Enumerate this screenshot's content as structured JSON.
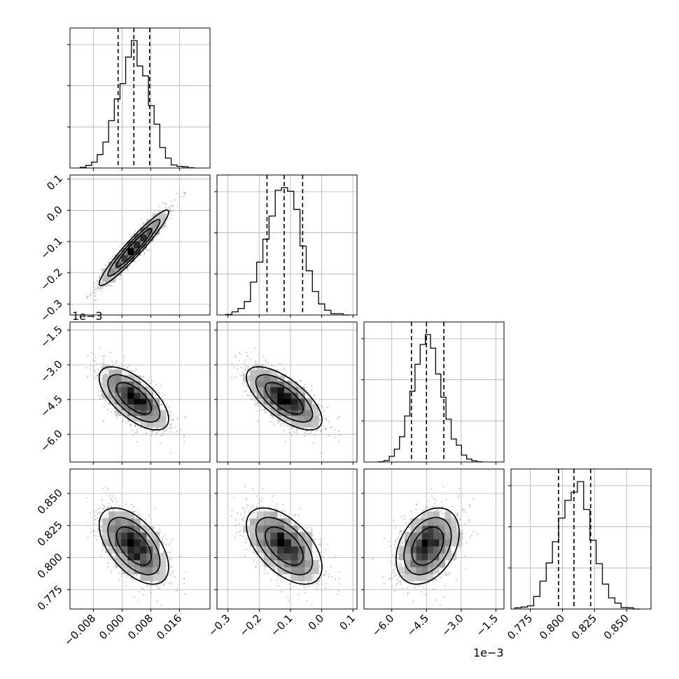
{
  "chart_data": {
    "type": "corner",
    "title": "",
    "parameters": [
      {
        "index": 0,
        "range": [
          -0.0145,
          0.0245
        ],
        "ticks": [
          -0.008,
          0.0,
          0.008,
          0.016
        ],
        "tick_labels": [
          "−0.008",
          "0.000",
          "0.008",
          "0.016"
        ],
        "offset_label": "",
        "mean": 0.0033,
        "sd": 0.0044,
        "quantiles": [
          -0.0011,
          0.0033,
          0.0077
        ]
      },
      {
        "index": 1,
        "range": [
          -0.335,
          0.113
        ],
        "ticks": [
          -0.3,
          -0.2,
          -0.1,
          0.0,
          0.1
        ],
        "tick_labels": [
          "−0.3",
          "−0.2",
          "−0.1",
          "0.0",
          "0.1"
        ],
        "offset_label": "",
        "mean": -0.12,
        "sd": 0.055,
        "quantiles": [
          -0.175,
          -0.12,
          -0.061
        ]
      },
      {
        "index": 2,
        "range": [
          -7.2,
          -1.15
        ],
        "ticks": [
          -6.0,
          -4.5,
          -3.0,
          -1.5
        ],
        "tick_labels": [
          "−6.0",
          "−4.5",
          "−3.0",
          "−1.5"
        ],
        "offset_label": "1e−3",
        "mean": -4.45,
        "sd": 0.62,
        "quantiles": [
          -5.15,
          -4.5,
          -3.75
        ]
      },
      {
        "index": 3,
        "range": [
          0.76,
          0.869
        ],
        "ticks": [
          0.775,
          0.8,
          0.825,
          0.85
        ],
        "tick_labels": [
          "0.775",
          "0.800",
          "0.825",
          "0.850"
        ],
        "offset_label": "",
        "mean": 0.809,
        "sd": 0.0135,
        "quantiles": [
          0.797,
          0.809,
          0.822
        ]
      }
    ],
    "correlations": {
      "0-1": 0.95,
      "0-2": -0.65,
      "1-2": -0.68,
      "0-3": -0.55,
      "1-3": -0.55,
      "2-3": 0.35
    },
    "histogram_bins": 20,
    "contour_levels_sigma": [
      1,
      1.5,
      2
    ],
    "grid": true
  }
}
